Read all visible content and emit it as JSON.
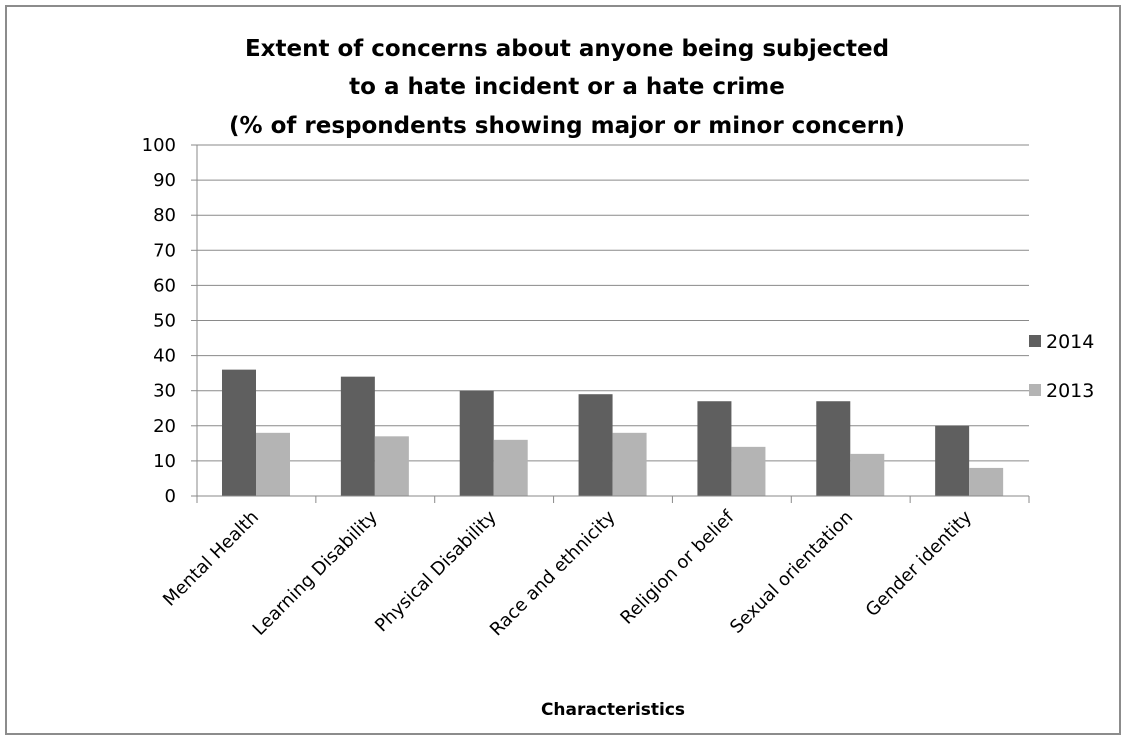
{
  "chart_data": {
    "type": "bar",
    "title": [
      "Extent of concerns about anyone being subjected",
      "to a hate incident or a hate crime",
      "(% of respondents showing major or minor concern)"
    ],
    "xlabel": "Characteristics",
    "ylabel": "",
    "ylim": [
      0,
      100
    ],
    "yticks": [
      "0",
      "10",
      "20",
      "30",
      "40",
      "50",
      "60",
      "70",
      "80",
      "90",
      "100"
    ],
    "grid": true,
    "legend_position": "right",
    "categories": [
      "Mental Health",
      "Learning Disability",
      "Physical Disability",
      "Race and ethnicity",
      "Religion or belief",
      "Sexual orientation",
      "Gender identity"
    ],
    "series": [
      {
        "name": "2014",
        "color": "#5f5f5f",
        "values": [
          36,
          34,
          30,
          29,
          27,
          27,
          20
        ]
      },
      {
        "name": "2013",
        "color": "#b4b4b4",
        "values": [
          18,
          17,
          16,
          18,
          14,
          12,
          8
        ]
      }
    ]
  }
}
